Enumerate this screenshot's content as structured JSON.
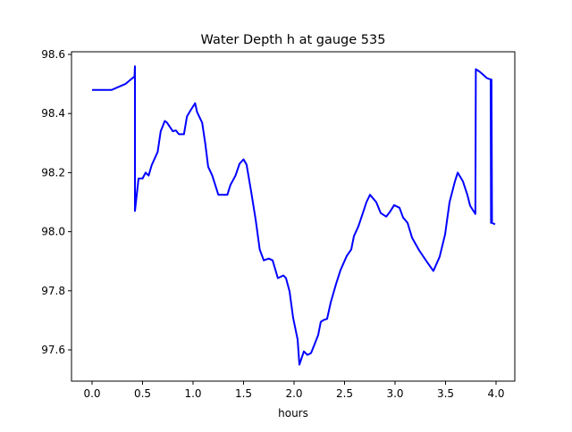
{
  "chart_data": {
    "type": "line",
    "title": "Water Depth h at gauge 535",
    "xlabel": "hours",
    "ylabel": "",
    "xlim": [
      -0.2,
      4.2
    ],
    "ylim": [
      97.49,
      98.62
    ],
    "xticks": [
      0.0,
      0.5,
      1.0,
      1.5,
      2.0,
      2.5,
      3.0,
      3.5,
      4.0
    ],
    "xtick_labels": [
      "0.0",
      "0.5",
      "1.0",
      "1.5",
      "2.0",
      "2.5",
      "3.0",
      "3.5",
      "4.0"
    ],
    "yticks": [
      97.6,
      97.8,
      98.0,
      98.2,
      98.4,
      98.6
    ],
    "ytick_labels": [
      "97.6",
      "97.8",
      "98.0",
      "98.2",
      "98.4",
      "98.6"
    ],
    "grid": false,
    "series": [
      {
        "name": "h",
        "color": "#0000ff",
        "x": [
          0.0,
          0.195,
          0.33,
          0.4,
          0.42,
          0.425,
          0.425,
          0.46,
          0.5,
          0.53,
          0.56,
          0.59,
          0.65,
          0.68,
          0.72,
          0.74,
          0.8,
          0.83,
          0.86,
          0.91,
          0.94,
          0.97,
          1.02,
          1.04,
          1.09,
          1.12,
          1.15,
          1.19,
          1.25,
          1.3,
          1.34,
          1.37,
          1.42,
          1.46,
          1.5,
          1.53,
          1.575,
          1.62,
          1.66,
          1.7,
          1.75,
          1.788,
          1.84,
          1.894,
          1.92,
          1.956,
          1.99,
          2.035,
          2.053,
          2.097,
          2.133,
          2.168,
          2.204,
          2.239,
          2.265,
          2.292,
          2.327,
          2.363,
          2.416,
          2.46,
          2.522,
          2.566,
          2.593,
          2.637,
          2.681,
          2.717,
          2.752,
          2.814,
          2.858,
          2.912,
          2.947,
          2.991,
          3.044,
          3.08,
          3.124,
          3.168,
          3.239,
          3.318,
          3.38,
          3.442,
          3.496,
          3.54,
          3.593,
          3.62,
          3.673,
          3.717,
          3.743,
          3.796,
          3.8,
          3.84,
          3.91,
          3.947,
          3.95,
          3.955,
          3.96,
          3.99
        ],
        "y": [
          98.48,
          98.48,
          98.5,
          98.52,
          98.525,
          98.56,
          98.07,
          98.18,
          98.18,
          98.2,
          98.19,
          98.225,
          98.27,
          98.34,
          98.375,
          98.37,
          98.34,
          98.343,
          98.33,
          98.33,
          98.39,
          98.408,
          98.435,
          98.405,
          98.369,
          98.3,
          98.22,
          98.19,
          98.125,
          98.125,
          98.125,
          98.158,
          98.19,
          98.23,
          98.245,
          98.227,
          98.136,
          98.04,
          97.94,
          97.903,
          97.909,
          97.903,
          97.843,
          97.852,
          97.843,
          97.798,
          97.71,
          97.635,
          97.55,
          97.595,
          97.583,
          97.589,
          97.62,
          97.65,
          97.695,
          97.701,
          97.705,
          97.76,
          97.823,
          97.87,
          97.918,
          97.94,
          97.985,
          98.018,
          98.063,
          98.1,
          98.125,
          98.1,
          98.063,
          98.051,
          98.066,
          98.09,
          98.081,
          98.048,
          98.03,
          97.98,
          97.937,
          97.897,
          97.867,
          97.915,
          97.991,
          98.1,
          98.17,
          98.2,
          98.17,
          98.124,
          98.088,
          98.06,
          98.55,
          98.541,
          98.52,
          98.515,
          98.03,
          98.515,
          98.03,
          98.025
        ]
      }
    ]
  }
}
